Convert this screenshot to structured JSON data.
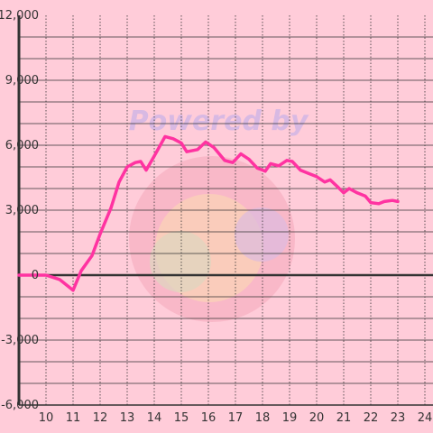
{
  "chart_data": {
    "type": "line",
    "title": "",
    "xlabel": "",
    "ylabel": "",
    "x_ticks": [
      "10",
      "11",
      "12",
      "13",
      "14",
      "15",
      "16",
      "17",
      "18",
      "19",
      "20",
      "21",
      "22",
      "23",
      "24"
    ],
    "y_ticks": [
      "12,000",
      "9,000",
      "6,000",
      "3,000",
      "0",
      "-3,000",
      "-6,000"
    ],
    "xlim": [
      9.0,
      24.3
    ],
    "ylim": [
      -6000,
      12000
    ],
    "grid": true,
    "legend": "none",
    "series": [
      {
        "x": [
          9.0,
          10.0,
          10.5,
          11.0,
          11.3,
          11.7,
          12.0,
          12.4,
          12.7,
          13.0,
          13.3,
          13.5,
          13.7,
          14.0,
          14.4,
          14.7,
          15.0,
          15.2,
          15.6,
          15.9,
          16.2,
          16.6,
          16.9,
          17.2,
          17.5,
          17.8,
          18.1,
          18.3,
          18.6,
          18.9,
          19.1,
          19.4,
          19.7,
          20.0,
          20.3,
          20.5,
          20.8,
          21.0,
          21.2,
          21.5,
          21.8,
          22.0,
          22.3,
          22.5,
          22.8,
          23.0
        ],
        "values": [
          0,
          0,
          -200,
          -700,
          200,
          900,
          1900,
          3100,
          4300,
          5000,
          5200,
          5250,
          4850,
          5500,
          6400,
          6300,
          6100,
          5700,
          5800,
          6150,
          5900,
          5300,
          5200,
          5600,
          5350,
          4950,
          4800,
          5150,
          5050,
          5300,
          5250,
          4850,
          4700,
          4550,
          4300,
          4400,
          4050,
          3800,
          4000,
          3800,
          3650,
          3350,
          3300,
          3400,
          3450,
          3400
        ]
      }
    ],
    "colors": {
      "line": "#ff33a1",
      "background": "#ffccd9",
      "grid": "#333333",
      "axis": "#333333",
      "zero_line": "#333333"
    }
  },
  "watermark": {
    "text": "Powered by"
  }
}
